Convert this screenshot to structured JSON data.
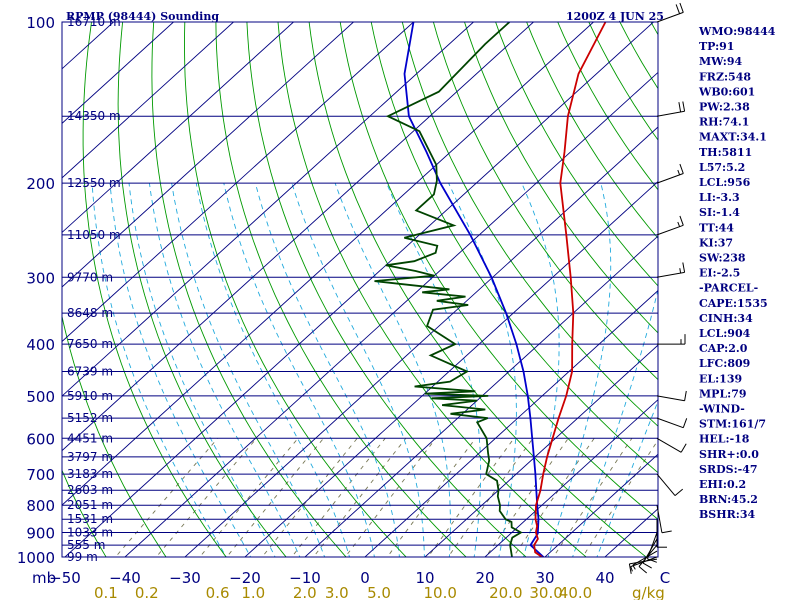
{
  "header": {
    "station": "RPMP (98444) Sounding",
    "time": "1200Z  4 JUN 25"
  },
  "colors": {
    "frame": "#000080",
    "isobar": "#000080",
    "isotherm": "#000080",
    "dry_adiabat": "#009900",
    "moist_adiabat": "#22aadd",
    "mixing_ratio": "#777755",
    "temperature": "#cc0000",
    "dewpoint": "#004400",
    "parcel": "#0000cc",
    "mixing_label": "#a88a00",
    "wind": "#000000"
  },
  "chart_data": {
    "type": "skew-t",
    "y_axis_unit_label": "mb",
    "ylim": [
      1000,
      100
    ],
    "xlim": [
      -50,
      50
    ],
    "pressure_levels": [
      100,
      200,
      300,
      400,
      500,
      600,
      700,
      800,
      900,
      1000
    ],
    "pressure_tick_labels": [
      "100",
      "200",
      "300",
      "400",
      "500",
      "600",
      "700",
      "800",
      "900",
      "1000"
    ],
    "height_lines": [
      {
        "p": 100,
        "label": "16710 m"
      },
      {
        "p": 150,
        "label": "14350 m"
      },
      {
        "p": 200,
        "label": "12550 m"
      },
      {
        "p": 250,
        "label": "11050 m"
      },
      {
        "p": 300,
        "label": "9770 m"
      },
      {
        "p": 350,
        "label": "8648 m"
      },
      {
        "p": 400,
        "label": "7650 m"
      },
      {
        "p": 450,
        "label": "6739 m"
      },
      {
        "p": 500,
        "label": "5910 m"
      },
      {
        "p": 550,
        "label": "5152 m"
      },
      {
        "p": 600,
        "label": "4451 m"
      },
      {
        "p": 650,
        "label": "3797 m"
      },
      {
        "p": 700,
        "label": "3183 m"
      },
      {
        "p": 750,
        "label": "2603 m"
      },
      {
        "p": 800,
        "label": "2051 m"
      },
      {
        "p": 850,
        "label": "1531 m"
      },
      {
        "p": 900,
        "label": "1033 m"
      },
      {
        "p": 950,
        "label": "555 m"
      },
      {
        "p": 1000,
        "label": "99 m"
      }
    ],
    "isotherms_C": [
      -50,
      -40,
      -30,
      -20,
      -10,
      0,
      10,
      20,
      30,
      40,
      50
    ],
    "temperature_tick_labels": [
      "−50",
      "−40",
      "−30",
      "−20",
      "−10",
      "0",
      "10",
      "20",
      "30",
      "40",
      "C"
    ],
    "mixing_ratio_values": [
      "0.1",
      "0.2",
      "0.6",
      "1.0",
      "2.0",
      "3.0",
      "5.0",
      "10.0",
      "20.0",
      "30.0",
      "40.0"
    ],
    "mixing_ratio_unit": "g/kg",
    "temperature_profile": [
      [
        1009,
        30.5
      ],
      [
        1000,
        29.5
      ],
      [
        980,
        27.5
      ],
      [
        950,
        26
      ],
      [
        925,
        25.5
      ],
      [
        900,
        24
      ],
      [
        875,
        23
      ],
      [
        850,
        21.5
      ],
      [
        800,
        19
      ],
      [
        750,
        17
      ],
      [
        700,
        14.5
      ],
      [
        650,
        12
      ],
      [
        600,
        9.5
      ],
      [
        550,
        6.8
      ],
      [
        500,
        4
      ],
      [
        450,
        0.5
      ],
      [
        400,
        -4.5
      ],
      [
        350,
        -10
      ],
      [
        300,
        -17
      ],
      [
        250,
        -25.5
      ],
      [
        200,
        -36
      ],
      [
        175,
        -41
      ],
      [
        150,
        -47
      ],
      [
        125,
        -53
      ],
      [
        100,
        -58
      ]
    ],
    "dewpoint_profile": [
      [
        1009,
        25
      ],
      [
        1000,
        24.5
      ],
      [
        950,
        22
      ],
      [
        920,
        21
      ],
      [
        900,
        21.5
      ],
      [
        880,
        19
      ],
      [
        860,
        18
      ],
      [
        850,
        16.5
      ],
      [
        820,
        14
      ],
      [
        800,
        13
      ],
      [
        770,
        11
      ],
      [
        750,
        10
      ],
      [
        720,
        8
      ],
      [
        700,
        5
      ],
      [
        660,
        3
      ],
      [
        640,
        1.5
      ],
      [
        600,
        -1.5
      ],
      [
        560,
        -6
      ],
      [
        550,
        -5
      ],
      [
        540,
        -12
      ],
      [
        530,
        -7
      ],
      [
        520,
        -15
      ],
      [
        510,
        -10
      ],
      [
        505,
        -18
      ],
      [
        500,
        -9
      ],
      [
        495,
        -20
      ],
      [
        490,
        -12
      ],
      [
        480,
        -23
      ],
      [
        470,
        -18
      ],
      [
        450,
        -17
      ],
      [
        420,
        -26
      ],
      [
        400,
        -24
      ],
      [
        370,
        -32
      ],
      [
        345,
        -34
      ],
      [
        338,
        -29
      ],
      [
        332,
        -35
      ],
      [
        326,
        -31
      ],
      [
        320,
        -39
      ],
      [
        316,
        -35
      ],
      [
        305,
        -49
      ],
      [
        298,
        -40
      ],
      [
        292,
        -44
      ],
      [
        285,
        -50
      ],
      [
        280,
        -46
      ],
      [
        270,
        -44
      ],
      [
        262,
        -45
      ],
      [
        253,
        -52
      ],
      [
        240,
        -46
      ],
      [
        225,
        -55
      ],
      [
        210,
        -55
      ],
      [
        198,
        -57
      ],
      [
        185,
        -60
      ],
      [
        160,
        -69
      ],
      [
        150,
        -77
      ],
      [
        135,
        -73
      ],
      [
        110,
        -74
      ],
      [
        100,
        -74
      ]
    ],
    "parcel_profile": [
      [
        1009,
        30.5
      ],
      [
        950,
        25.4
      ],
      [
        904,
        24.5
      ],
      [
        850,
        22
      ],
      [
        800,
        19.2
      ],
      [
        750,
        16.3
      ],
      [
        700,
        13.2
      ],
      [
        650,
        9.8
      ],
      [
        600,
        6.1
      ],
      [
        550,
        2.1
      ],
      [
        500,
        -2.4
      ],
      [
        450,
        -7.6
      ],
      [
        400,
        -13.8
      ],
      [
        350,
        -21.2
      ],
      [
        300,
        -30.2
      ],
      [
        250,
        -41.5
      ],
      [
        200,
        -56
      ],
      [
        175,
        -64
      ],
      [
        150,
        -73.5
      ],
      [
        125,
        -82
      ],
      [
        100,
        -90
      ]
    ],
    "wind_barbs": [
      {
        "p": 1009,
        "dir": 260,
        "kt": 10
      },
      {
        "p": 1000,
        "dir": 250,
        "kt": 5
      },
      {
        "p": 975,
        "dir": 240,
        "kt": 5
      },
      {
        "p": 950,
        "dir": 220,
        "kt": 10
      },
      {
        "p": 925,
        "dir": 210,
        "kt": 10
      },
      {
        "p": 900,
        "dir": 200,
        "kt": 10
      },
      {
        "p": 850,
        "dir": 180,
        "kt": 10
      },
      {
        "p": 800,
        "dir": 170,
        "kt": 10
      },
      {
        "p": 700,
        "dir": 140,
        "kt": 10
      },
      {
        "p": 600,
        "dir": 120,
        "kt": 10
      },
      {
        "p": 550,
        "dir": 110,
        "kt": 10
      },
      {
        "p": 500,
        "dir": 100,
        "kt": 10
      },
      {
        "p": 400,
        "dir": 90,
        "kt": 15
      },
      {
        "p": 300,
        "dir": 80,
        "kt": 15
      },
      {
        "p": 250,
        "dir": 70,
        "kt": 15
      },
      {
        "p": 200,
        "dir": 70,
        "kt": 15
      },
      {
        "p": 150,
        "dir": 80,
        "kt": 20
      },
      {
        "p": 100,
        "dir": 70,
        "kt": 20
      }
    ],
    "indices": [
      "WMO:98444",
      "TP:91",
      "MW:94",
      "FRZ:548",
      "WB0:601",
      "PW:2.38",
      "RH:74.1",
      "MAXT:34.1",
      "TH:5811",
      "L57:5.2",
      "LCL:956",
      "LI:-3.3",
      "SI:-1.4",
      "TT:44",
      "KI:37",
      "SW:238",
      "EI:-2.5",
      "-PARCEL-",
      "CAPE:1535",
      "CINH:34",
      "LCL:904",
      "CAP:2.0",
      "LFC:809",
      "EL:139",
      "MPL:79",
      "-WIND-",
      "STM:161/7",
      "HEL:-18",
      "SHR+:0.0",
      "SRDS:-47",
      "EHI:0.2",
      "BRN:45.2",
      "BSHR:34"
    ],
    "grid": true
  }
}
